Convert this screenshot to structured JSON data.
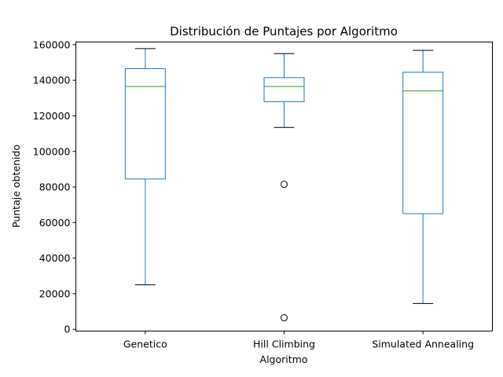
{
  "chart_data": {
    "type": "box",
    "title": "Distribución de Puntajes por Algoritmo",
    "xlabel": "Algoritmo",
    "ylabel": "Puntaje obtenido",
    "ylim": [
      -1000,
      161500
    ],
    "yticks": [
      0,
      20000,
      40000,
      60000,
      80000,
      100000,
      120000,
      140000,
      160000
    ],
    "ytick_labels": [
      "0",
      "20000",
      "40000",
      "60000",
      "80000",
      "100000",
      "120000",
      "140000",
      "160000"
    ],
    "grid": false,
    "categories": [
      "Genetico",
      "Hill Climbing",
      "Simulated Annealing"
    ],
    "boxes": [
      {
        "category": "Genetico",
        "whisker_low": 25000,
        "q1": 84500,
        "median": 136500,
        "q3": 146500,
        "whisker_high": 157800,
        "outliers": []
      },
      {
        "category": "Hill Climbing",
        "whisker_low": 113500,
        "q1": 128000,
        "median": 136500,
        "q3": 141500,
        "whisker_high": 155000,
        "outliers": [
          81500,
          6500
        ]
      },
      {
        "category": "Simulated Annealing",
        "whisker_low": 14500,
        "q1": 65000,
        "median": 134000,
        "q3": 144500,
        "whisker_high": 156800,
        "outliers": []
      }
    ],
    "colors": {
      "box": "#1f77b4",
      "median": "#2ca02c",
      "whisker_cap": "#000000",
      "outlier": "#000000",
      "axis": "#000000"
    }
  }
}
